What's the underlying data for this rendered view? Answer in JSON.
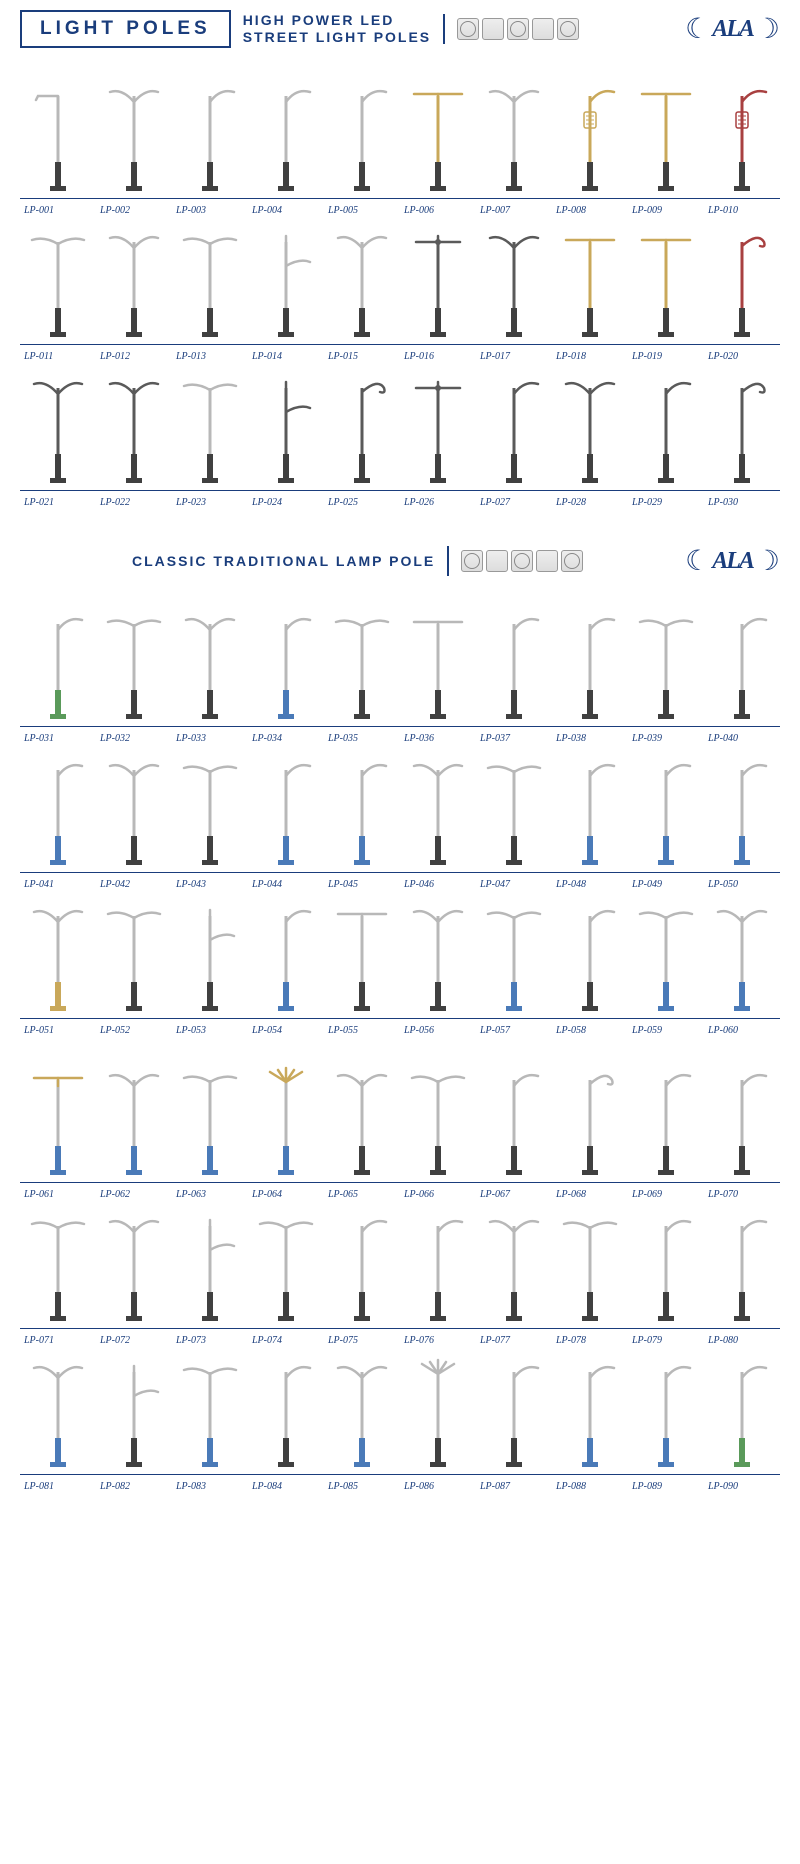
{
  "colors": {
    "primary": "#1a3d7c",
    "pole_silver": "#b8b8b8",
    "pole_dark": "#5a5a5a",
    "pole_gold": "#c9a85a",
    "pole_red": "#a84040",
    "base_blue": "#4a7ab8",
    "base_green": "#5a9a5a",
    "base_dark": "#404040"
  },
  "header1": {
    "title": "LIGHT POLES",
    "subtitle_line1": "HIGH POWER LED",
    "subtitle_line2": "STREET LIGHT POLES",
    "logo": "ALA"
  },
  "header2": {
    "subtitle": "CLASSIC TRADITIONAL LAMP POLE",
    "logo": "ALA"
  },
  "section1": {
    "items": [
      {
        "label": "LP-001",
        "arms": "single-l",
        "pole": "#b8b8b8",
        "base": "#404040"
      },
      {
        "label": "LP-002",
        "arms": "double-y",
        "pole": "#b8b8b8",
        "base": "#404040"
      },
      {
        "label": "LP-003",
        "arms": "single-arc-r",
        "pole": "#b8b8b8",
        "base": "#404040"
      },
      {
        "label": "LP-004",
        "arms": "single-arc-r",
        "pole": "#b8b8b8",
        "base": "#404040"
      },
      {
        "label": "LP-005",
        "arms": "single-arc-r",
        "pole": "#b8b8b8",
        "base": "#404040"
      },
      {
        "label": "LP-006",
        "arms": "double-flat",
        "pole": "#c9a85a",
        "base": "#404040"
      },
      {
        "label": "LP-007",
        "arms": "double-y",
        "pole": "#b8b8b8",
        "base": "#404040"
      },
      {
        "label": "LP-008",
        "arms": "single-arc-r",
        "pole": "#c9a85a",
        "base": "#404040",
        "ornament": true
      },
      {
        "label": "LP-009",
        "arms": "double-flat",
        "pole": "#c9a85a",
        "base": "#404040"
      },
      {
        "label": "LP-010",
        "arms": "single-arc-r",
        "pole": "#a84040",
        "base": "#404040",
        "ornament": true
      },
      {
        "label": "LP-011",
        "arms": "double-arc",
        "pole": "#b8b8b8",
        "base": "#404040"
      },
      {
        "label": "LP-012",
        "arms": "double-y",
        "pole": "#b8b8b8",
        "base": "#404040"
      },
      {
        "label": "LP-013",
        "arms": "double-arc",
        "pole": "#b8b8b8",
        "base": "#404040"
      },
      {
        "label": "LP-014",
        "arms": "single-low",
        "pole": "#b8b8b8",
        "base": "#404040"
      },
      {
        "label": "LP-015",
        "arms": "double-y",
        "pole": "#b8b8b8",
        "base": "#404040"
      },
      {
        "label": "LP-016",
        "arms": "double-cross",
        "pole": "#5a5a5a",
        "base": "#404040"
      },
      {
        "label": "LP-017",
        "arms": "double-y",
        "pole": "#5a5a5a",
        "base": "#404040"
      },
      {
        "label": "LP-018",
        "arms": "double-flat",
        "pole": "#c9a85a",
        "base": "#404040"
      },
      {
        "label": "LP-019",
        "arms": "double-flat",
        "pole": "#c9a85a",
        "base": "#404040"
      },
      {
        "label": "LP-020",
        "arms": "single-curl",
        "pole": "#a84040",
        "base": "#404040"
      },
      {
        "label": "LP-021",
        "arms": "double-y",
        "pole": "#5a5a5a",
        "base": "#404040"
      },
      {
        "label": "LP-022",
        "arms": "double-y",
        "pole": "#5a5a5a",
        "base": "#404040"
      },
      {
        "label": "LP-023",
        "arms": "double-arc",
        "pole": "#b8b8b8",
        "base": "#404040"
      },
      {
        "label": "LP-024",
        "arms": "single-low",
        "pole": "#5a5a5a",
        "base": "#404040"
      },
      {
        "label": "LP-025",
        "arms": "single-curl",
        "pole": "#5a5a5a",
        "base": "#404040"
      },
      {
        "label": "LP-026",
        "arms": "double-cross",
        "pole": "#5a5a5a",
        "base": "#404040"
      },
      {
        "label": "LP-027",
        "arms": "single-arc-r",
        "pole": "#5a5a5a",
        "base": "#404040"
      },
      {
        "label": "LP-028",
        "arms": "double-y",
        "pole": "#5a5a5a",
        "base": "#404040"
      },
      {
        "label": "LP-029",
        "arms": "single-arc-r",
        "pole": "#5a5a5a",
        "base": "#404040"
      },
      {
        "label": "LP-030",
        "arms": "single-curl",
        "pole": "#5a5a5a",
        "base": "#404040"
      }
    ]
  },
  "section2": {
    "items": [
      {
        "label": "LP-031",
        "arms": "single-arc-r",
        "pole": "#b8b8b8",
        "base": "#5a9a5a"
      },
      {
        "label": "LP-032",
        "arms": "double-arc",
        "pole": "#b8b8b8",
        "base": "#404040"
      },
      {
        "label": "LP-033",
        "arms": "double-y",
        "pole": "#b8b8b8",
        "base": "#404040"
      },
      {
        "label": "LP-034",
        "arms": "single-arc-r",
        "pole": "#b8b8b8",
        "base": "#4a7ab8"
      },
      {
        "label": "LP-035",
        "arms": "double-arc",
        "pole": "#b8b8b8",
        "base": "#404040"
      },
      {
        "label": "LP-036",
        "arms": "double-flat",
        "pole": "#b8b8b8",
        "base": "#404040"
      },
      {
        "label": "LP-037",
        "arms": "single-arc-r",
        "pole": "#b8b8b8",
        "base": "#404040"
      },
      {
        "label": "LP-038",
        "arms": "single-arc-r",
        "pole": "#b8b8b8",
        "base": "#404040"
      },
      {
        "label": "LP-039",
        "arms": "double-arc",
        "pole": "#b8b8b8",
        "base": "#404040"
      },
      {
        "label": "LP-040",
        "arms": "single-arc-r",
        "pole": "#b8b8b8",
        "base": "#404040"
      },
      {
        "label": "LP-041",
        "arms": "single-arc-r",
        "pole": "#b8b8b8",
        "base": "#4a7ab8"
      },
      {
        "label": "LP-042",
        "arms": "double-y",
        "pole": "#b8b8b8",
        "base": "#404040"
      },
      {
        "label": "LP-043",
        "arms": "double-arc",
        "pole": "#b8b8b8",
        "base": "#404040"
      },
      {
        "label": "LP-044",
        "arms": "single-arc-r",
        "pole": "#b8b8b8",
        "base": "#4a7ab8"
      },
      {
        "label": "LP-045",
        "arms": "single-arc-r",
        "pole": "#b8b8b8",
        "base": "#4a7ab8"
      },
      {
        "label": "LP-046",
        "arms": "double-y",
        "pole": "#b8b8b8",
        "base": "#404040"
      },
      {
        "label": "LP-047",
        "arms": "double-arc",
        "pole": "#b8b8b8",
        "base": "#404040"
      },
      {
        "label": "LP-048",
        "arms": "single-arc-r",
        "pole": "#b8b8b8",
        "base": "#4a7ab8"
      },
      {
        "label": "LP-049",
        "arms": "single-arc-r",
        "pole": "#b8b8b8",
        "base": "#4a7ab8"
      },
      {
        "label": "LP-050",
        "arms": "single-arc-r",
        "pole": "#b8b8b8",
        "base": "#4a7ab8"
      },
      {
        "label": "LP-051",
        "arms": "double-y",
        "pole": "#b8b8b8",
        "base": "#c9a85a"
      },
      {
        "label": "LP-052",
        "arms": "double-arc",
        "pole": "#b8b8b8",
        "base": "#404040"
      },
      {
        "label": "LP-053",
        "arms": "single-low",
        "pole": "#b8b8b8",
        "base": "#404040"
      },
      {
        "label": "LP-054",
        "arms": "single-arc-r",
        "pole": "#b8b8b8",
        "base": "#4a7ab8"
      },
      {
        "label": "LP-055",
        "arms": "double-flat",
        "pole": "#b8b8b8",
        "base": "#404040"
      },
      {
        "label": "LP-056",
        "arms": "double-y",
        "pole": "#b8b8b8",
        "base": "#404040"
      },
      {
        "label": "LP-057",
        "arms": "double-arc",
        "pole": "#b8b8b8",
        "base": "#4a7ab8"
      },
      {
        "label": "LP-058",
        "arms": "single-arc-r",
        "pole": "#b8b8b8",
        "base": "#404040"
      },
      {
        "label": "LP-059",
        "arms": "double-arc",
        "pole": "#b8b8b8",
        "base": "#4a7ab8"
      },
      {
        "label": "LP-060",
        "arms": "double-y",
        "pole": "#b8b8b8",
        "base": "#4a7ab8"
      },
      {
        "label": "LP-061",
        "arms": "double-flat",
        "pole": "#b8b8b8",
        "base": "#4a7ab8",
        "top": "#c9a85a"
      },
      {
        "label": "LP-062",
        "arms": "double-y",
        "pole": "#b8b8b8",
        "base": "#4a7ab8"
      },
      {
        "label": "LP-063",
        "arms": "double-arc",
        "pole": "#b8b8b8",
        "base": "#4a7ab8"
      },
      {
        "label": "LP-064",
        "arms": "fan",
        "pole": "#b8b8b8",
        "base": "#4a7ab8",
        "top": "#c9a85a"
      },
      {
        "label": "LP-065",
        "arms": "double-y",
        "pole": "#b8b8b8",
        "base": "#404040"
      },
      {
        "label": "LP-066",
        "arms": "double-arc",
        "pole": "#b8b8b8",
        "base": "#404040"
      },
      {
        "label": "LP-067",
        "arms": "single-arc-r",
        "pole": "#b8b8b8",
        "base": "#404040"
      },
      {
        "label": "LP-068",
        "arms": "single-curl",
        "pole": "#b8b8b8",
        "base": "#404040"
      },
      {
        "label": "LP-069",
        "arms": "single-arc-r",
        "pole": "#b8b8b8",
        "base": "#404040"
      },
      {
        "label": "LP-070",
        "arms": "single-arc-r",
        "pole": "#b8b8b8",
        "base": "#404040"
      },
      {
        "label": "LP-071",
        "arms": "double-arc",
        "pole": "#b8b8b8",
        "base": "#404040"
      },
      {
        "label": "LP-072",
        "arms": "double-y",
        "pole": "#b8b8b8",
        "base": "#404040"
      },
      {
        "label": "LP-073",
        "arms": "single-low",
        "pole": "#b8b8b8",
        "base": "#404040"
      },
      {
        "label": "LP-074",
        "arms": "double-arc",
        "pole": "#b8b8b8",
        "base": "#404040"
      },
      {
        "label": "LP-075",
        "arms": "single-arc-r",
        "pole": "#b8b8b8",
        "base": "#404040"
      },
      {
        "label": "LP-076",
        "arms": "single-arc-r",
        "pole": "#b8b8b8",
        "base": "#404040"
      },
      {
        "label": "LP-077",
        "arms": "double-y",
        "pole": "#b8b8b8",
        "base": "#404040"
      },
      {
        "label": "LP-078",
        "arms": "double-arc",
        "pole": "#b8b8b8",
        "base": "#404040"
      },
      {
        "label": "LP-079",
        "arms": "single-arc-r",
        "pole": "#b8b8b8",
        "base": "#404040"
      },
      {
        "label": "LP-080",
        "arms": "single-arc-r",
        "pole": "#b8b8b8",
        "base": "#404040"
      },
      {
        "label": "LP-081",
        "arms": "double-y",
        "pole": "#b8b8b8",
        "base": "#4a7ab8"
      },
      {
        "label": "LP-082",
        "arms": "single-low",
        "pole": "#b8b8b8",
        "base": "#404040"
      },
      {
        "label": "LP-083",
        "arms": "double-arc",
        "pole": "#b8b8b8",
        "base": "#4a7ab8"
      },
      {
        "label": "LP-084",
        "arms": "single-arc-r",
        "pole": "#b8b8b8",
        "base": "#404040"
      },
      {
        "label": "LP-085",
        "arms": "double-y",
        "pole": "#b8b8b8",
        "base": "#4a7ab8"
      },
      {
        "label": "LP-086",
        "arms": "fan",
        "pole": "#b8b8b8",
        "base": "#404040"
      },
      {
        "label": "LP-087",
        "arms": "single-arc-r",
        "pole": "#b8b8b8",
        "base": "#404040"
      },
      {
        "label": "LP-088",
        "arms": "single-arc-r",
        "pole": "#b8b8b8",
        "base": "#4a7ab8"
      },
      {
        "label": "LP-089",
        "arms": "single-arc-r",
        "pole": "#b8b8b8",
        "base": "#4a7ab8"
      },
      {
        "label": "LP-090",
        "arms": "single-arc-r",
        "pole": "#b8b8b8",
        "base": "#5a9a5a"
      }
    ]
  }
}
